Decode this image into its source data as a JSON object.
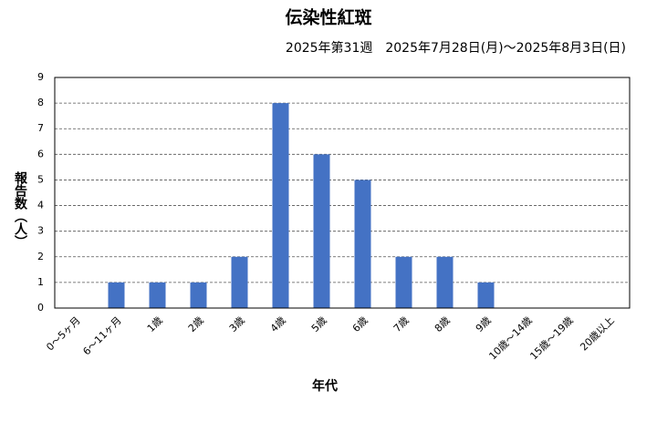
{
  "chart_data": {
    "type": "bar",
    "title": "伝染性紅斑",
    "subtitle": "2025年第31週　2025年7月28日(月)～2025年8月3日(日)",
    "x_label": "年代",
    "y_label": "報告数（人）",
    "categories": [
      "0～5ヶ月",
      "6～11ヶ月",
      "1歳",
      "2歳",
      "3歳",
      "4歳",
      "5歳",
      "6歳",
      "7歳",
      "8歳",
      "9歳",
      "10歳～14歳",
      "15歳～19歳",
      "20歳以上"
    ],
    "values": [
      0,
      1,
      1,
      1,
      2,
      8,
      6,
      5,
      2,
      2,
      1,
      0,
      0,
      0
    ],
    "color": "#4472c4",
    "ylim": [
      0,
      9
    ],
    "yticks": [
      0,
      1,
      2,
      3,
      4,
      5,
      6,
      7,
      8,
      9
    ],
    "grid": true
  }
}
